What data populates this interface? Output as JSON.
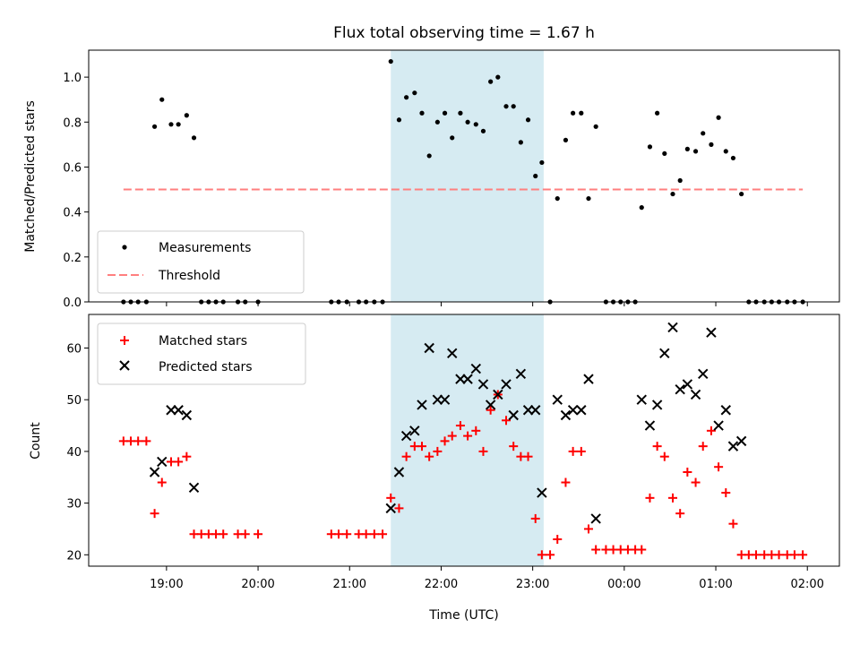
{
  "chart_data": [
    {
      "type": "scatter",
      "title": "Flux total observing time = 1.67 h",
      "xlabel": "",
      "ylabel": "Matched/Predicted stars",
      "xlim": [
        18.15,
        26.35
      ],
      "ylim": [
        0,
        1.12
      ],
      "x_tick_values": [
        19,
        20,
        21,
        22,
        23,
        24,
        25,
        26
      ],
      "x_tick_labels": [],
      "y_tick_values": [
        0,
        0.2,
        0.4,
        0.6,
        0.8,
        1.0
      ],
      "y_tick_labels": [
        "0.0",
        "0.2",
        "0.4",
        "0.6",
        "0.8",
        "1.0"
      ],
      "shaded_span": {
        "x_start": 21.45,
        "x_end": 23.12,
        "color": "#add8e6"
      },
      "legend": {
        "position": "lower left",
        "entries": [
          "Measurements",
          "Threshold"
        ]
      },
      "threshold": {
        "name": "Threshold",
        "value": 0.5,
        "x_start": 18.53,
        "x_end": 25.95,
        "color": "#ff7f7f",
        "style": "dashed"
      },
      "series": [
        {
          "name": "Measurements",
          "color": "#000000",
          "marker": "dot",
          "points": [
            [
              18.53,
              0
            ],
            [
              18.61,
              0
            ],
            [
              18.69,
              0
            ],
            [
              18.78,
              0
            ],
            [
              18.87,
              0.78
            ],
            [
              18.95,
              0.9
            ],
            [
              19.05,
              0.79
            ],
            [
              19.13,
              0.79
            ],
            [
              19.22,
              0.83
            ],
            [
              19.3,
              0.73
            ],
            [
              19.38,
              0
            ],
            [
              19.46,
              0
            ],
            [
              19.54,
              0
            ],
            [
              19.62,
              0
            ],
            [
              19.78,
              0
            ],
            [
              19.86,
              0
            ],
            [
              20.0,
              0
            ],
            [
              20.8,
              0
            ],
            [
              20.88,
              0
            ],
            [
              20.97,
              0
            ],
            [
              21.1,
              0
            ],
            [
              21.18,
              0
            ],
            [
              21.27,
              0
            ],
            [
              21.36,
              0
            ],
            [
              21.45,
              1.07
            ],
            [
              21.54,
              0.81
            ],
            [
              21.62,
              0.91
            ],
            [
              21.71,
              0.93
            ],
            [
              21.79,
              0.84
            ],
            [
              21.87,
              0.65
            ],
            [
              21.96,
              0.8
            ],
            [
              22.04,
              0.84
            ],
            [
              22.12,
              0.73
            ],
            [
              22.21,
              0.84
            ],
            [
              22.29,
              0.8
            ],
            [
              22.38,
              0.79
            ],
            [
              22.46,
              0.76
            ],
            [
              22.54,
              0.98
            ],
            [
              22.62,
              1.0
            ],
            [
              22.71,
              0.87
            ],
            [
              22.79,
              0.87
            ],
            [
              22.87,
              0.71
            ],
            [
              22.95,
              0.81
            ],
            [
              23.03,
              0.56
            ],
            [
              23.1,
              0.62
            ],
            [
              23.19,
              0
            ],
            [
              23.27,
              0.46
            ],
            [
              23.36,
              0.72
            ],
            [
              23.44,
              0.84
            ],
            [
              23.53,
              0.84
            ],
            [
              23.61,
              0.46
            ],
            [
              23.69,
              0.78
            ],
            [
              23.8,
              0
            ],
            [
              23.88,
              0
            ],
            [
              23.96,
              0
            ],
            [
              24.04,
              0
            ],
            [
              24.12,
              0
            ],
            [
              24.19,
              0.42
            ],
            [
              24.28,
              0.69
            ],
            [
              24.36,
              0.84
            ],
            [
              24.44,
              0.66
            ],
            [
              24.53,
              0.48
            ],
            [
              24.61,
              0.54
            ],
            [
              24.69,
              0.68
            ],
            [
              24.78,
              0.67
            ],
            [
              24.86,
              0.75
            ],
            [
              24.95,
              0.7
            ],
            [
              25.03,
              0.82
            ],
            [
              25.11,
              0.67
            ],
            [
              25.19,
              0.64
            ],
            [
              25.28,
              0.48
            ],
            [
              25.36,
              0
            ],
            [
              25.44,
              0
            ],
            [
              25.53,
              0
            ],
            [
              25.61,
              0
            ],
            [
              25.69,
              0
            ],
            [
              25.78,
              0
            ],
            [
              25.86,
              0
            ],
            [
              25.95,
              0
            ]
          ]
        }
      ]
    },
    {
      "type": "scatter",
      "title": "",
      "xlabel": "Time (UTC)",
      "ylabel": "Count",
      "xlim": [
        18.15,
        26.35
      ],
      "ylim": [
        17.8,
        66.5
      ],
      "x_tick_values": [
        19,
        20,
        21,
        22,
        23,
        24,
        25,
        26
      ],
      "x_tick_labels": [
        "19:00",
        "20:00",
        "21:00",
        "22:00",
        "23:00",
        "00:00",
        "01:00",
        "02:00"
      ],
      "y_tick_values": [
        20,
        30,
        40,
        50,
        60
      ],
      "y_tick_labels": [
        "20",
        "30",
        "40",
        "50",
        "60"
      ],
      "shaded_span": {
        "x_start": 21.45,
        "x_end": 23.12,
        "color": "#add8e6"
      },
      "legend": {
        "position": "upper left",
        "entries": [
          "Matched stars",
          "Predicted stars"
        ]
      },
      "series": [
        {
          "name": "Matched stars",
          "color": "#ff0000",
          "marker": "plus",
          "points": [
            [
              18.53,
              42
            ],
            [
              18.61,
              42
            ],
            [
              18.69,
              42
            ],
            [
              18.78,
              42
            ],
            [
              18.87,
              28
            ],
            [
              18.95,
              34
            ],
            [
              19.05,
              38
            ],
            [
              19.13,
              38
            ],
            [
              19.22,
              39
            ],
            [
              19.3,
              24
            ],
            [
              19.38,
              24
            ],
            [
              19.46,
              24
            ],
            [
              19.54,
              24
            ],
            [
              19.62,
              24
            ],
            [
              19.78,
              24
            ],
            [
              19.86,
              24
            ],
            [
              20.0,
              24
            ],
            [
              20.8,
              24
            ],
            [
              20.88,
              24
            ],
            [
              20.97,
              24
            ],
            [
              21.1,
              24
            ],
            [
              21.18,
              24
            ],
            [
              21.27,
              24
            ],
            [
              21.36,
              24
            ],
            [
              21.45,
              31
            ],
            [
              21.54,
              29
            ],
            [
              21.62,
              39
            ],
            [
              21.71,
              41
            ],
            [
              21.79,
              41
            ],
            [
              21.87,
              39
            ],
            [
              21.96,
              40
            ],
            [
              22.04,
              42
            ],
            [
              22.12,
              43
            ],
            [
              22.21,
              45
            ],
            [
              22.29,
              43
            ],
            [
              22.38,
              44
            ],
            [
              22.46,
              40
            ],
            [
              22.54,
              48
            ],
            [
              22.62,
              51
            ],
            [
              22.71,
              46
            ],
            [
              22.79,
              41
            ],
            [
              22.87,
              39
            ],
            [
              22.95,
              39
            ],
            [
              23.03,
              27
            ],
            [
              23.1,
              20
            ],
            [
              23.19,
              20
            ],
            [
              23.27,
              23
            ],
            [
              23.36,
              34
            ],
            [
              23.44,
              40
            ],
            [
              23.53,
              40
            ],
            [
              23.61,
              25
            ],
            [
              23.69,
              21
            ],
            [
              23.8,
              21
            ],
            [
              23.88,
              21
            ],
            [
              23.96,
              21
            ],
            [
              24.04,
              21
            ],
            [
              24.12,
              21
            ],
            [
              24.19,
              21
            ],
            [
              24.28,
              31
            ],
            [
              24.36,
              41
            ],
            [
              24.44,
              39
            ],
            [
              24.53,
              31
            ],
            [
              24.61,
              28
            ],
            [
              24.69,
              36
            ],
            [
              24.78,
              34
            ],
            [
              24.86,
              41
            ],
            [
              24.95,
              44
            ],
            [
              25.03,
              37
            ],
            [
              25.11,
              32
            ],
            [
              25.19,
              26
            ],
            [
              25.28,
              20
            ],
            [
              25.36,
              20
            ],
            [
              25.44,
              20
            ],
            [
              25.53,
              20
            ],
            [
              25.61,
              20
            ],
            [
              25.69,
              20
            ],
            [
              25.78,
              20
            ],
            [
              25.86,
              20
            ],
            [
              25.95,
              20
            ]
          ]
        },
        {
          "name": "Predicted stars",
          "color": "#000000",
          "marker": "x",
          "points": [
            [
              18.87,
              36
            ],
            [
              18.95,
              38
            ],
            [
              19.05,
              48
            ],
            [
              19.13,
              48
            ],
            [
              19.22,
              47
            ],
            [
              19.3,
              33
            ],
            [
              21.45,
              29
            ],
            [
              21.54,
              36
            ],
            [
              21.62,
              43
            ],
            [
              21.71,
              44
            ],
            [
              21.79,
              49
            ],
            [
              21.87,
              60
            ],
            [
              21.96,
              50
            ],
            [
              22.04,
              50
            ],
            [
              22.12,
              59
            ],
            [
              22.21,
              54
            ],
            [
              22.29,
              54
            ],
            [
              22.38,
              56
            ],
            [
              22.46,
              53
            ],
            [
              22.54,
              49
            ],
            [
              22.62,
              51
            ],
            [
              22.71,
              53
            ],
            [
              22.79,
              47
            ],
            [
              22.87,
              55
            ],
            [
              22.95,
              48
            ],
            [
              23.03,
              48
            ],
            [
              23.1,
              32
            ],
            [
              23.27,
              50
            ],
            [
              23.36,
              47
            ],
            [
              23.44,
              48
            ],
            [
              23.53,
              48
            ],
            [
              23.61,
              54
            ],
            [
              23.69,
              27
            ],
            [
              24.19,
              50
            ],
            [
              24.28,
              45
            ],
            [
              24.36,
              49
            ],
            [
              24.44,
              59
            ],
            [
              24.53,
              64
            ],
            [
              24.61,
              52
            ],
            [
              24.69,
              53
            ],
            [
              24.78,
              51
            ],
            [
              24.86,
              55
            ],
            [
              24.95,
              63
            ],
            [
              25.03,
              45
            ],
            [
              25.11,
              48
            ],
            [
              25.19,
              41
            ],
            [
              25.28,
              42
            ]
          ]
        }
      ]
    }
  ]
}
